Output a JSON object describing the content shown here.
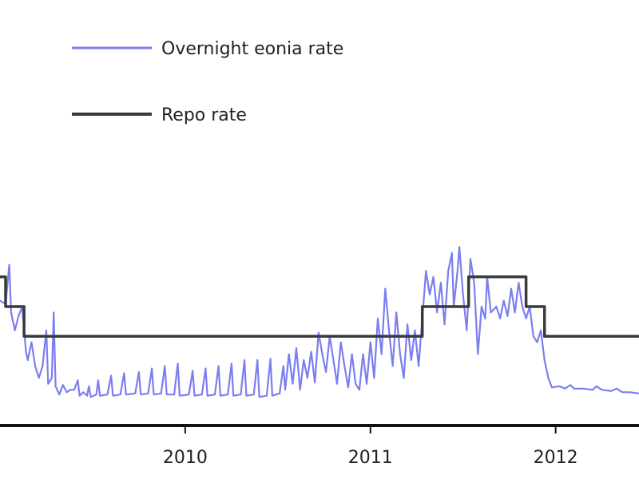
{
  "chart_data": {
    "type": "line",
    "xlabel": "",
    "ylabel": "",
    "xlim": [
      2009.0,
      2012.45
    ],
    "ylim": [
      0.0,
      2.1
    ],
    "grid": false,
    "legend_position": "top-left",
    "x_ticks": [
      {
        "value": 2010,
        "label": "2010"
      },
      {
        "value": 2011,
        "label": "2011"
      },
      {
        "value": 2012,
        "label": "2012"
      }
    ],
    "series": [
      {
        "name": "Overnight eonia rate",
        "color": "#7b7ef0",
        "style": "line",
        "points": [
          [
            2009.0,
            1.05
          ],
          [
            2009.03,
            1.02
          ],
          [
            2009.05,
            1.35
          ],
          [
            2009.06,
            0.95
          ],
          [
            2009.08,
            0.8
          ],
          [
            2009.1,
            0.92
          ],
          [
            2009.12,
            1.0
          ],
          [
            2009.14,
            0.62
          ],
          [
            2009.15,
            0.55
          ],
          [
            2009.17,
            0.7
          ],
          [
            2009.19,
            0.5
          ],
          [
            2009.21,
            0.4
          ],
          [
            2009.23,
            0.5
          ],
          [
            2009.25,
            0.8
          ],
          [
            2009.26,
            0.35
          ],
          [
            2009.28,
            0.4
          ],
          [
            2009.29,
            0.95
          ],
          [
            2009.3,
            0.33
          ],
          [
            2009.32,
            0.26
          ],
          [
            2009.34,
            0.34
          ],
          [
            2009.36,
            0.28
          ],
          [
            2009.38,
            0.3
          ],
          [
            2009.4,
            0.3
          ],
          [
            2009.42,
            0.38
          ],
          [
            2009.43,
            0.25
          ],
          [
            2009.45,
            0.28
          ],
          [
            2009.47,
            0.25
          ],
          [
            2009.48,
            0.33
          ],
          [
            2009.49,
            0.24
          ],
          [
            2009.52,
            0.26
          ],
          [
            2009.53,
            0.38
          ],
          [
            2009.54,
            0.25
          ],
          [
            2009.58,
            0.26
          ],
          [
            2009.6,
            0.42
          ],
          [
            2009.61,
            0.25
          ],
          [
            2009.65,
            0.26
          ],
          [
            2009.67,
            0.44
          ],
          [
            2009.68,
            0.26
          ],
          [
            2009.73,
            0.27
          ],
          [
            2009.75,
            0.45
          ],
          [
            2009.76,
            0.26
          ],
          [
            2009.8,
            0.27
          ],
          [
            2009.82,
            0.48
          ],
          [
            2009.83,
            0.26
          ],
          [
            2009.87,
            0.27
          ],
          [
            2009.89,
            0.5
          ],
          [
            2009.9,
            0.26
          ],
          [
            2009.94,
            0.26
          ],
          [
            2009.96,
            0.52
          ],
          [
            2009.97,
            0.25
          ],
          [
            2010.02,
            0.26
          ],
          [
            2010.04,
            0.46
          ],
          [
            2010.05,
            0.25
          ],
          [
            2010.09,
            0.26
          ],
          [
            2010.11,
            0.48
          ],
          [
            2010.12,
            0.25
          ],
          [
            2010.16,
            0.26
          ],
          [
            2010.18,
            0.5
          ],
          [
            2010.19,
            0.25
          ],
          [
            2010.23,
            0.26
          ],
          [
            2010.25,
            0.52
          ],
          [
            2010.26,
            0.25
          ],
          [
            2010.3,
            0.26
          ],
          [
            2010.32,
            0.55
          ],
          [
            2010.33,
            0.25
          ],
          [
            2010.37,
            0.26
          ],
          [
            2010.39,
            0.55
          ],
          [
            2010.4,
            0.24
          ],
          [
            2010.44,
            0.25
          ],
          [
            2010.46,
            0.56
          ],
          [
            2010.47,
            0.25
          ],
          [
            2010.51,
            0.27
          ],
          [
            2010.53,
            0.5
          ],
          [
            2010.54,
            0.3
          ],
          [
            2010.56,
            0.6
          ],
          [
            2010.58,
            0.35
          ],
          [
            2010.6,
            0.65
          ],
          [
            2010.62,
            0.3
          ],
          [
            2010.64,
            0.55
          ],
          [
            2010.66,
            0.4
          ],
          [
            2010.68,
            0.62
          ],
          [
            2010.7,
            0.36
          ],
          [
            2010.72,
            0.78
          ],
          [
            2010.74,
            0.6
          ],
          [
            2010.76,
            0.45
          ],
          [
            2010.78,
            0.75
          ],
          [
            2010.8,
            0.55
          ],
          [
            2010.82,
            0.35
          ],
          [
            2010.84,
            0.7
          ],
          [
            2010.86,
            0.5
          ],
          [
            2010.88,
            0.32
          ],
          [
            2010.9,
            0.6
          ],
          [
            2010.92,
            0.35
          ],
          [
            2010.94,
            0.3
          ],
          [
            2010.96,
            0.6
          ],
          [
            2010.98,
            0.35
          ],
          [
            2011.0,
            0.7
          ],
          [
            2011.02,
            0.4
          ],
          [
            2011.04,
            0.9
          ],
          [
            2011.06,
            0.6
          ],
          [
            2011.08,
            1.15
          ],
          [
            2011.1,
            0.8
          ],
          [
            2011.12,
            0.5
          ],
          [
            2011.14,
            0.95
          ],
          [
            2011.16,
            0.6
          ],
          [
            2011.18,
            0.4
          ],
          [
            2011.2,
            0.85
          ],
          [
            2011.22,
            0.55
          ],
          [
            2011.24,
            0.8
          ],
          [
            2011.26,
            0.5
          ],
          [
            2011.28,
            0.9
          ],
          [
            2011.3,
            1.3
          ],
          [
            2011.32,
            1.1
          ],
          [
            2011.34,
            1.25
          ],
          [
            2011.36,
            0.95
          ],
          [
            2011.38,
            1.2
          ],
          [
            2011.4,
            0.85
          ],
          [
            2011.42,
            1.3
          ],
          [
            2011.44,
            1.45
          ],
          [
            2011.45,
            1.0
          ],
          [
            2011.47,
            1.3
          ],
          [
            2011.48,
            1.5
          ],
          [
            2011.5,
            1.1
          ],
          [
            2011.52,
            0.8
          ],
          [
            2011.54,
            1.4
          ],
          [
            2011.56,
            1.2
          ],
          [
            2011.58,
            0.6
          ],
          [
            2011.6,
            1.0
          ],
          [
            2011.62,
            0.9
          ],
          [
            2011.63,
            1.25
          ],
          [
            2011.65,
            0.95
          ],
          [
            2011.68,
            1.0
          ],
          [
            2011.7,
            0.9
          ],
          [
            2011.72,
            1.05
          ],
          [
            2011.74,
            0.92
          ],
          [
            2011.76,
            1.15
          ],
          [
            2011.78,
            0.95
          ],
          [
            2011.8,
            1.2
          ],
          [
            2011.82,
            1.0
          ],
          [
            2011.84,
            0.9
          ],
          [
            2011.86,
            1.0
          ],
          [
            2011.88,
            0.75
          ],
          [
            2011.9,
            0.7
          ],
          [
            2011.92,
            0.8
          ],
          [
            2011.94,
            0.55
          ],
          [
            2011.96,
            0.4
          ],
          [
            2011.98,
            0.32
          ],
          [
            2012.02,
            0.33
          ],
          [
            2012.05,
            0.31
          ],
          [
            2012.08,
            0.34
          ],
          [
            2012.1,
            0.31
          ],
          [
            2012.15,
            0.31
          ],
          [
            2012.2,
            0.3
          ],
          [
            2012.22,
            0.33
          ],
          [
            2012.25,
            0.3
          ],
          [
            2012.3,
            0.29
          ],
          [
            2012.33,
            0.31
          ],
          [
            2012.36,
            0.28
          ],
          [
            2012.4,
            0.28
          ],
          [
            2012.45,
            0.27
          ]
        ]
      },
      {
        "name": "Repo rate",
        "color": "#3a3a3a",
        "style": "step",
        "points": [
          [
            2009.0,
            1.25
          ],
          [
            2009.03,
            1.25
          ],
          [
            2009.03,
            1.0
          ],
          [
            2009.13,
            1.0
          ],
          [
            2009.13,
            0.75
          ],
          [
            2011.28,
            0.75
          ],
          [
            2011.28,
            1.0
          ],
          [
            2011.53,
            1.0
          ],
          [
            2011.53,
            1.25
          ],
          [
            2011.84,
            1.25
          ],
          [
            2011.84,
            1.0
          ],
          [
            2011.94,
            1.0
          ],
          [
            2011.94,
            0.75
          ],
          [
            2012.45,
            0.75
          ]
        ]
      }
    ]
  }
}
